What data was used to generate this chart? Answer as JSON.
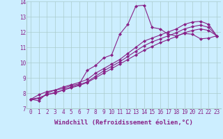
{
  "background_color": "#cceeff",
  "grid_color": "#aacccc",
  "line_color": "#882288",
  "marker": "D",
  "markersize": 2,
  "linewidth": 0.8,
  "xlabel": "Windchill (Refroidissement éolien,°C)",
  "xlabel_fontsize": 6.5,
  "tick_fontsize": 5.5,
  "ylim": [
    7,
    14
  ],
  "xlim": [
    -0.5,
    23.5
  ],
  "yticks": [
    7,
    8,
    9,
    10,
    11,
    12,
    13,
    14
  ],
  "xticks": [
    0,
    1,
    2,
    3,
    4,
    5,
    6,
    7,
    8,
    9,
    10,
    11,
    12,
    13,
    14,
    15,
    16,
    17,
    18,
    19,
    20,
    21,
    22,
    23
  ],
  "series": [
    [
      7.6,
      7.5,
      8.0,
      8.2,
      8.3,
      8.5,
      8.6,
      9.5,
      9.8,
      10.3,
      10.5,
      11.85,
      12.5,
      13.7,
      13.75,
      12.3,
      12.2,
      11.85,
      11.75,
      11.9,
      11.85,
      11.55,
      11.6,
      11.75
    ],
    [
      7.6,
      7.9,
      8.1,
      8.2,
      8.4,
      8.55,
      8.7,
      8.9,
      9.3,
      9.6,
      9.9,
      10.2,
      10.6,
      11.0,
      11.4,
      11.6,
      11.8,
      12.0,
      12.2,
      12.5,
      12.65,
      12.7,
      12.5,
      11.75
    ],
    [
      7.6,
      7.65,
      7.9,
      8.05,
      8.2,
      8.4,
      8.55,
      8.75,
      9.1,
      9.45,
      9.75,
      10.05,
      10.4,
      10.75,
      11.1,
      11.35,
      11.55,
      11.75,
      11.95,
      12.2,
      12.35,
      12.45,
      12.3,
      11.75
    ],
    [
      7.6,
      7.7,
      7.9,
      8.0,
      8.2,
      8.35,
      8.5,
      8.7,
      9.0,
      9.3,
      9.6,
      9.9,
      10.2,
      10.5,
      10.8,
      11.05,
      11.3,
      11.5,
      11.7,
      11.95,
      12.1,
      12.2,
      12.1,
      11.75
    ]
  ]
}
